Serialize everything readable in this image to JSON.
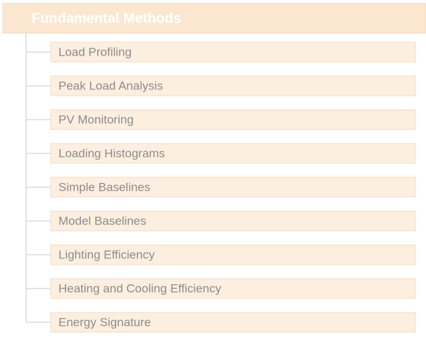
{
  "title": "Fundamental Methods",
  "items": [
    "Load Profiling",
    "Peak Load Analysis",
    "PV Monitoring",
    "Loading Histograms",
    "Simple Baselines",
    "Model Baselines",
    "Lighting Efficiency",
    "Heating and Cooling Efficiency",
    "Energy Signature"
  ]
}
